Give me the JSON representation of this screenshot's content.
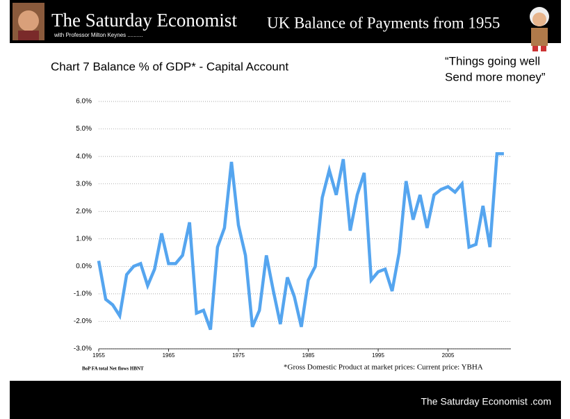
{
  "header": {
    "title": "The Saturday Economist",
    "subtitle": "with Professor Milton Keynes ..........",
    "headline": "UK Balance of Payments from 1955"
  },
  "quote": [
    "“Things going well",
    "Send more money”"
  ],
  "footer": "The Saturday Economist .com",
  "chart_data": {
    "type": "line",
    "title": "Chart 7 Balance % of GDP* - Capital Account",
    "source": "BoP FA total Net flows HBNT",
    "footnote": "*Gross Domestic Product at market prices: Current price: YBHA",
    "x": [
      1955,
      1956,
      1957,
      1958,
      1959,
      1960,
      1961,
      1962,
      1963,
      1964,
      1965,
      1966,
      1967,
      1968,
      1969,
      1970,
      1971,
      1972,
      1973,
      1974,
      1975,
      1976,
      1977,
      1978,
      1979,
      1980,
      1981,
      1982,
      1983,
      1984,
      1985,
      1986,
      1987,
      1988,
      1989,
      1990,
      1991,
      1992,
      1993,
      1994,
      1995,
      1996,
      1997,
      1998,
      1999,
      2000,
      2001,
      2002,
      2003,
      2004,
      2005,
      2006,
      2007,
      2008,
      2009,
      2010,
      2011,
      2012,
      2013
    ],
    "series": [
      {
        "name": "Balance % of GDP",
        "color": "#55a5ef",
        "values": [
          0.2,
          -1.2,
          -1.4,
          -1.8,
          -0.3,
          0.0,
          0.1,
          -0.7,
          -0.1,
          1.2,
          0.1,
          0.1,
          0.4,
          1.6,
          -1.7,
          -1.6,
          -2.3,
          0.7,
          1.4,
          3.8,
          1.5,
          0.4,
          -2.2,
          -1.6,
          0.4,
          -0.9,
          -2.1,
          -0.4,
          -1.1,
          -2.2,
          -0.5,
          0.0,
          2.5,
          3.5,
          2.6,
          3.9,
          1.3,
          2.6,
          3.4,
          -0.5,
          -0.2,
          -0.1,
          -0.9,
          0.5,
          3.1,
          1.7,
          2.6,
          1.4,
          2.6,
          2.8,
          2.9,
          2.7,
          3.0,
          0.7,
          0.8,
          2.2,
          0.7,
          4.1,
          4.1
        ]
      }
    ],
    "xlim": [
      1955,
      2014
    ],
    "xticks": [
      1955,
      1965,
      1975,
      1985,
      1995,
      2005
    ],
    "ylim": [
      -3,
      6
    ],
    "yticks": [
      {
        "value": -3,
        "label": "-3.0%"
      },
      {
        "value": -2,
        "label": "-2.0%"
      },
      {
        "value": -1,
        "label": "-1.0%"
      },
      {
        "value": 0,
        "label": "0.0%"
      },
      {
        "value": 1,
        "label": "1.0%"
      },
      {
        "value": 2,
        "label": "2.0%"
      },
      {
        "value": 3,
        "label": "3.0%"
      },
      {
        "value": 4,
        "label": "4.0%"
      },
      {
        "value": 5,
        "label": "5.0%"
      },
      {
        "value": 6,
        "label": "6.0%"
      }
    ],
    "grid": true
  }
}
